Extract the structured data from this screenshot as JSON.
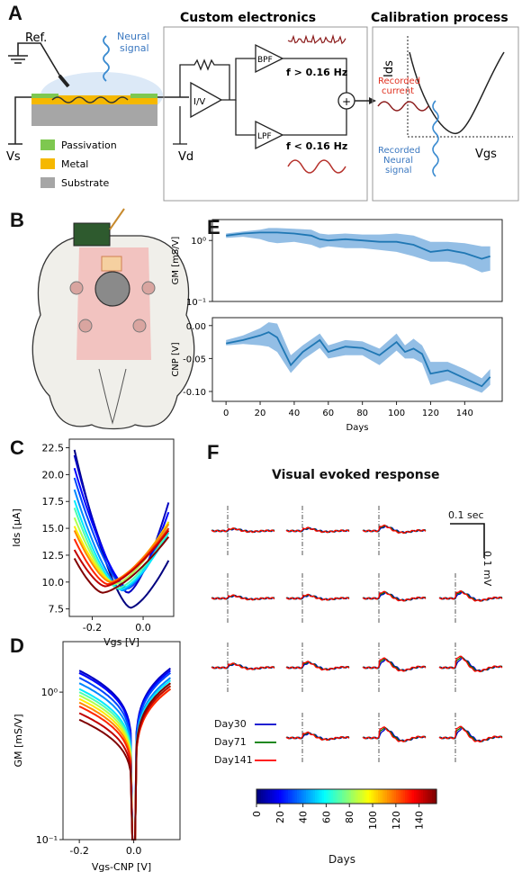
{
  "panel_letters": {
    "a": "A",
    "b": "B",
    "c": "C",
    "d": "D",
    "e": "E",
    "f": "F"
  },
  "panel_a": {
    "ref_label": "Ref.",
    "neural_label_1": "Neural",
    "neural_label_2": "signal",
    "vs_label": "Vs",
    "legend": [
      {
        "label": "Passivation",
        "color": "#7ec850"
      },
      {
        "label": "Metal",
        "color": "#f5b800"
      },
      {
        "label": "Substrate",
        "color": "#a6a6a6"
      }
    ],
    "electronics_title": "Custom electronics",
    "iv_label": "I/V",
    "bpf_label": "BPF",
    "lpf_label": "LPF",
    "high_band": "f > 0.16 Hz",
    "low_band": "f < 0.16 Hz",
    "vd_label": "Vd",
    "sum_symbol": "+",
    "calibration_title": "Calibration process",
    "ids_label": "Ids",
    "vgs_label": "Vgs",
    "recorded_current_1": "Recorded",
    "recorded_current_2": "current",
    "recorded_neural_1": "Recorded",
    "recorded_neural_2": "Neural",
    "recorded_neural_3": "signal"
  },
  "colorbar": {
    "ticks": [
      "0",
      "20",
      "40",
      "60",
      "80",
      "100",
      "120",
      "140"
    ],
    "label": "Days",
    "range": [
      0,
      155
    ]
  },
  "chart_data": [
    {
      "panel": "E-top",
      "type": "line",
      "ylabel": "GM [mS/V]",
      "yscale": "log",
      "ylim": [
        0.1,
        2.2
      ],
      "yticks": [
        "10⁰",
        "10⁻¹"
      ],
      "xlim": [
        -8,
        162
      ],
      "x": [
        0,
        10,
        20,
        25,
        30,
        40,
        50,
        55,
        60,
        70,
        80,
        90,
        100,
        110,
        120,
        130,
        140,
        150,
        155
      ],
      "y": [
        1.2,
        1.3,
        1.35,
        1.35,
        1.35,
        1.3,
        1.2,
        1.05,
        1.0,
        1.05,
        1.0,
        0.95,
        0.95,
        0.85,
        0.65,
        0.7,
        0.62,
        0.5,
        0.55
      ],
      "lower": [
        1.1,
        1.15,
        1.05,
        0.95,
        0.9,
        0.95,
        0.85,
        0.75,
        0.8,
        0.75,
        0.75,
        0.7,
        0.65,
        0.55,
        0.45,
        0.45,
        0.4,
        0.3,
        0.32
      ],
      "upper": [
        1.3,
        1.4,
        1.5,
        1.6,
        1.6,
        1.55,
        1.5,
        1.3,
        1.25,
        1.3,
        1.25,
        1.25,
        1.3,
        1.2,
        0.95,
        0.95,
        0.9,
        0.8,
        0.8
      ],
      "color": "#1f77b4"
    },
    {
      "panel": "E-bottom",
      "type": "line",
      "ylabel": "CNP [V]",
      "ylim": [
        -0.115,
        0.012
      ],
      "yticks": [
        "0.00",
        "-0.05",
        "-0.10"
      ],
      "xlim": [
        -8,
        162
      ],
      "xticks": [
        "0",
        "20",
        "40",
        "60",
        "80",
        "100",
        "120",
        "140"
      ],
      "xlabel": "Days",
      "x": [
        0,
        10,
        20,
        25,
        30,
        38,
        45,
        55,
        60,
        70,
        80,
        90,
        100,
        105,
        110,
        115,
        120,
        130,
        140,
        150,
        155
      ],
      "y": [
        -0.027,
        -0.022,
        -0.015,
        -0.01,
        -0.018,
        -0.06,
        -0.04,
        -0.022,
        -0.04,
        -0.032,
        -0.034,
        -0.045,
        -0.025,
        -0.04,
        -0.035,
        -0.043,
        -0.073,
        -0.068,
        -0.08,
        -0.092,
        -0.078
      ],
      "lower": [
        -0.03,
        -0.028,
        -0.03,
        -0.032,
        -0.04,
        -0.072,
        -0.052,
        -0.034,
        -0.05,
        -0.045,
        -0.045,
        -0.06,
        -0.038,
        -0.05,
        -0.05,
        -0.057,
        -0.09,
        -0.083,
        -0.092,
        -0.102,
        -0.09
      ],
      "upper": [
        -0.022,
        -0.015,
        -0.004,
        0.005,
        0.003,
        -0.045,
        -0.03,
        -0.012,
        -0.03,
        -0.022,
        -0.024,
        -0.035,
        -0.012,
        -0.03,
        -0.02,
        -0.03,
        -0.055,
        -0.055,
        -0.066,
        -0.08,
        -0.066
      ],
      "color": "#1f77b4"
    },
    {
      "panel": "C",
      "type": "line",
      "ylabel": "Ids [µA]",
      "xlabel": "Vgs [V]",
      "xlim": [
        -0.29,
        0.12
      ],
      "ylim": [
        6.8,
        23.3
      ],
      "yticks": [
        "22.5",
        "20.0",
        "17.5",
        "15.0",
        "12.5",
        "10.0",
        "7.5"
      ],
      "xticks": [
        "-0.2",
        "0.0"
      ],
      "series": [
        {
          "day": 0,
          "min_x": -0.05,
          "min_y": 7.6,
          "left_y": 22.3,
          "right_y": 12.0
        },
        {
          "day": 10,
          "min_x": -0.06,
          "min_y": 9.0,
          "left_y": 21.8,
          "right_y": 17.4
        },
        {
          "day": 20,
          "min_x": -0.06,
          "min_y": 9.4,
          "left_y": 20.6,
          "right_y": 16.5
        },
        {
          "day": 30,
          "min_x": -0.07,
          "min_y": 9.4,
          "left_y": 19.7,
          "right_y": 15.6
        },
        {
          "day": 40,
          "min_x": -0.08,
          "min_y": 9.2,
          "left_y": 18.6,
          "right_y": 15.0
        },
        {
          "day": 55,
          "min_x": -0.09,
          "min_y": 9.3,
          "left_y": 17.6,
          "right_y": 14.6
        },
        {
          "day": 70,
          "min_x": -0.1,
          "min_y": 9.4,
          "left_y": 16.9,
          "right_y": 14.8
        },
        {
          "day": 85,
          "min_x": -0.11,
          "min_y": 9.8,
          "left_y": 16.0,
          "right_y": 15.4
        },
        {
          "day": 100,
          "min_x": -0.12,
          "min_y": 10.0,
          "left_y": 15.2,
          "right_y": 15.6
        },
        {
          "day": 115,
          "min_x": -0.13,
          "min_y": 10.0,
          "left_y": 14.8,
          "right_y": 15.4
        },
        {
          "day": 130,
          "min_x": -0.14,
          "min_y": 9.8,
          "left_y": 14.0,
          "right_y": 15.0
        },
        {
          "day": 145,
          "min_x": -0.15,
          "min_y": 9.6,
          "left_y": 13.0,
          "right_y": 14.8
        },
        {
          "day": 155,
          "min_x": -0.16,
          "min_y": 9.0,
          "left_y": 12.2,
          "right_y": 14.2
        }
      ]
    },
    {
      "panel": "D",
      "type": "line",
      "ylabel": "GM [mS/V]",
      "xlabel": "Vgs-CNP [V]",
      "yscale": "log",
      "xlim": [
        -0.26,
        0.17
      ],
      "ylim": [
        0.1,
        2.2
      ],
      "yticks": [
        "10⁰",
        "10⁻¹"
      ],
      "xticks": [
        "-0.2",
        "0.0"
      ],
      "series": [
        {
          "day": 0,
          "left": 1.25,
          "right": 1.0
        },
        {
          "day": 10,
          "left": 1.3,
          "right": 1.35
        },
        {
          "day": 20,
          "left": 1.25,
          "right": 1.3
        },
        {
          "day": 30,
          "left": 1.15,
          "right": 1.25
        },
        {
          "day": 40,
          "left": 1.05,
          "right": 1.15
        },
        {
          "day": 55,
          "left": 0.95,
          "right": 1.1
        },
        {
          "day": 70,
          "left": 0.9,
          "right": 1.05
        },
        {
          "day": 85,
          "left": 0.85,
          "right": 1.0
        },
        {
          "day": 100,
          "left": 0.8,
          "right": 1.0
        },
        {
          "day": 115,
          "left": 0.75,
          "right": 0.95
        },
        {
          "day": 130,
          "left": 0.7,
          "right": 0.95
        },
        {
          "day": 145,
          "left": 0.62,
          "right": 1.0
        },
        {
          "day": 155,
          "left": 0.55,
          "right": 1.05
        }
      ]
    }
  ],
  "panel_f": {
    "title": "Visual evoked response",
    "scale_time": "0.1 sec",
    "scale_volt": "0.1 mV",
    "rows": [
      [
        1,
        1,
        1,
        0
      ],
      [
        1,
        1,
        1,
        1
      ],
      [
        1,
        1,
        1,
        1
      ],
      [
        0,
        1,
        1,
        1
      ]
    ],
    "amplitude": [
      [
        0.4,
        0.5,
        0.9,
        0
      ],
      [
        0.5,
        0.6,
        1.1,
        1.2
      ],
      [
        0.7,
        1.0,
        1.6,
        1.9
      ],
      [
        0,
        0.9,
        1.8,
        1.9
      ]
    ],
    "legend": [
      {
        "label": "Day30",
        "color": "#0000cc"
      },
      {
        "label": "Day71",
        "color": "#007700"
      },
      {
        "label": "Day141",
        "color": "#ff0000"
      }
    ]
  }
}
